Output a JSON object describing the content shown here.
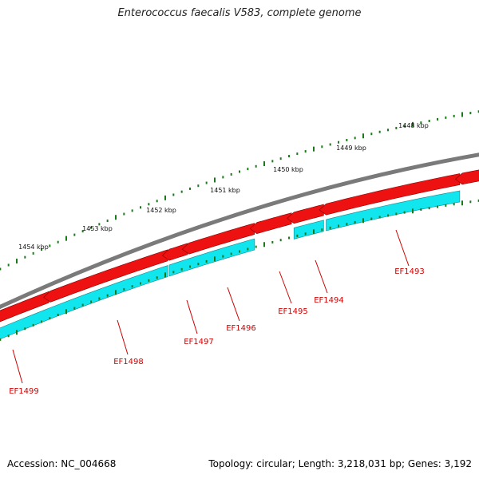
{
  "title": "Enterococcus faecalis V583, complete genome",
  "footer": {
    "accession_label": "Accession:",
    "accession": "NC_004668",
    "topology_label": "Topology:",
    "topology": "circular",
    "length_label": "Length:",
    "length": "3,218,031 bp",
    "genes_label": "Genes:",
    "genes": "3,192"
  },
  "ruler": {
    "color": "#1a7a1a",
    "labels": [
      "1448 kbp",
      "1449 kbp",
      "1450 kbp",
      "1451 kbp",
      "1452 kbp",
      "1453 kbp",
      "1454 kbp"
    ]
  },
  "genes": [
    {
      "id": "EF1493",
      "color": "#d00000"
    },
    {
      "id": "EF1494",
      "color": "#d00000"
    },
    {
      "id": "EF1495",
      "color": "#d00000"
    },
    {
      "id": "EF1496",
      "color": "#d00000"
    },
    {
      "id": "EF1497",
      "color": "#d00000"
    },
    {
      "id": "EF1498",
      "color": "#d00000"
    },
    {
      "id": "EF1499",
      "color": "#d00000"
    }
  ],
  "colors": {
    "backbone": "#7a7a7a",
    "gene_forward": "#ee1111",
    "gene_product": "#11e5ee",
    "label": "#cc0000"
  }
}
